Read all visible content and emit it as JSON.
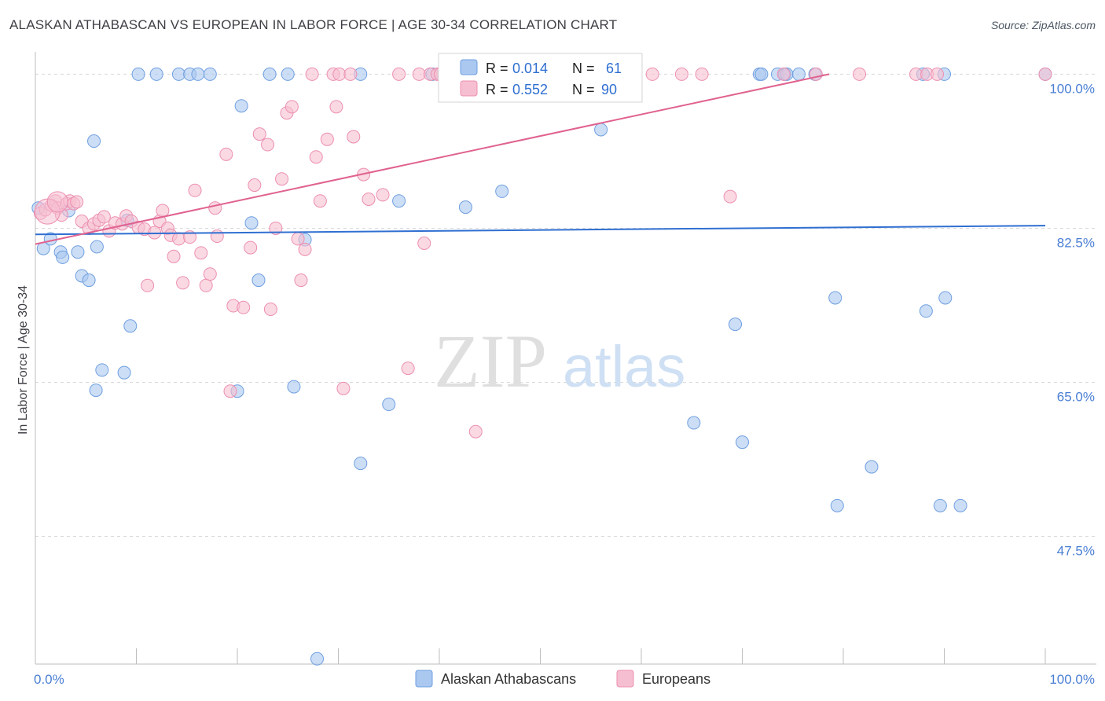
{
  "title": "ALASKAN ATHABASCAN VS EUROPEAN IN LABOR FORCE | AGE 30-34 CORRELATION CHART",
  "source": "Source: ZipAtlas.com",
  "watermark": {
    "zip": "ZIP",
    "atlas": "atlas"
  },
  "colors": {
    "blue_fill": "#aac8f0",
    "blue_stroke": "#6f9fe0",
    "blue_line": "#2f6fd1",
    "pink_fill": "#f6bfd1",
    "pink_stroke": "#ec8fb0",
    "pink_line": "#e0628f",
    "tick_label": "#4a7fd4",
    "grid": "#d9d9d9"
  },
  "legend": {
    "items": [
      {
        "r_label": "R =",
        "r_value": "0.014",
        "n_label": "N =",
        "n_value": "61"
      },
      {
        "r_label": "R =",
        "r_value": "0.552",
        "n_label": "N =",
        "n_value": "90"
      }
    ]
  },
  "chart_data": {
    "type": "scatter",
    "title": "ALASKAN ATHABASCAN VS EUROPEAN IN LABOR FORCE | AGE 30-34 CORRELATION CHART",
    "xlabel": "",
    "ylabel": "In Labor Force | Age 30-34",
    "xlim": [
      0,
      100
    ],
    "ylim": [
      33,
      102
    ],
    "x_tick_labels": [
      "0.0%",
      "100.0%"
    ],
    "y_ticks": [
      47.5,
      65.0,
      82.5,
      100.0
    ],
    "y_tick_labels": [
      "47.5%",
      "65.0%",
      "82.5%",
      "100.0%"
    ],
    "grid": true,
    "legend_position": "top-center",
    "series": [
      {
        "name": "Alaskan Athabascans",
        "r": 0.014,
        "n": 61,
        "trend": [
          [
            0,
            81.8
          ],
          [
            100,
            82.8
          ]
        ],
        "points": [
          [
            0.3,
            84.8
          ],
          [
            0.8,
            80.2
          ],
          [
            1.5,
            81.3
          ],
          [
            2.5,
            79.8
          ],
          [
            2.7,
            79.2
          ],
          [
            3.3,
            84.5
          ],
          [
            4.2,
            79.8
          ],
          [
            4.6,
            77.1
          ],
          [
            5.3,
            76.6
          ],
          [
            5.8,
            92.4
          ],
          [
            6.1,
            80.4
          ],
          [
            6.6,
            66.4
          ],
          [
            6.0,
            64.1
          ],
          [
            8.8,
            66.1
          ],
          [
            9.1,
            83.4
          ],
          [
            9.4,
            71.4
          ],
          [
            10.2,
            100.0
          ],
          [
            12.0,
            100.0
          ],
          [
            14.2,
            100.0
          ],
          [
            15.3,
            100.0
          ],
          [
            16.1,
            100.0
          ],
          [
            17.3,
            100.0
          ],
          [
            20.4,
            96.4
          ],
          [
            20.0,
            64.0
          ],
          [
            21.4,
            83.1
          ],
          [
            22.1,
            76.6
          ],
          [
            23.2,
            100.0
          ],
          [
            25.0,
            100.0
          ],
          [
            25.6,
            64.5
          ],
          [
            26.7,
            81.2
          ],
          [
            27.9,
            33.6
          ],
          [
            32.2,
            100.0
          ],
          [
            32.2,
            55.8
          ],
          [
            35.0,
            62.5
          ],
          [
            36.0,
            85.6
          ],
          [
            39.3,
            100.0
          ],
          [
            42.6,
            84.9
          ],
          [
            44.4,
            100.0
          ],
          [
            46.2,
            86.7
          ],
          [
            48.9,
            100.0
          ],
          [
            56.0,
            93.7
          ],
          [
            65.2,
            60.4
          ],
          [
            69.3,
            71.6
          ],
          [
            70.0,
            58.2
          ],
          [
            71.7,
            100.0
          ],
          [
            71.9,
            100.0
          ],
          [
            73.5,
            100.0
          ],
          [
            74.2,
            100.0
          ],
          [
            74.4,
            100.0
          ],
          [
            75.6,
            100.0
          ],
          [
            77.2,
            100.0
          ],
          [
            79.2,
            74.6
          ],
          [
            79.4,
            51.0
          ],
          [
            82.8,
            55.4
          ],
          [
            87.9,
            100.0
          ],
          [
            88.2,
            73.1
          ],
          [
            89.6,
            51.0
          ],
          [
            90.1,
            74.6
          ],
          [
            90.0,
            100.0
          ],
          [
            91.6,
            51.0
          ],
          [
            100.0,
            100.0
          ]
        ]
      },
      {
        "name": "Europeans",
        "r": 0.552,
        "n": 90,
        "trend": [
          [
            0,
            80.7
          ],
          [
            78.6,
            100.0
          ]
        ],
        "points": [
          [
            0.5,
            84.2
          ],
          [
            1.0,
            84.6
          ],
          [
            1.6,
            85.1
          ],
          [
            2.0,
            85.6
          ],
          [
            2.2,
            84.8
          ],
          [
            2.6,
            84.0
          ],
          [
            3.1,
            85.3
          ],
          [
            3.4,
            85.6
          ],
          [
            3.8,
            85.3
          ],
          [
            4.1,
            85.5
          ],
          [
            4.6,
            83.3
          ],
          [
            5.3,
            82.5
          ],
          [
            5.8,
            83.0
          ],
          [
            6.3,
            83.4
          ],
          [
            6.8,
            83.8
          ],
          [
            7.3,
            82.2
          ],
          [
            7.9,
            83.1
          ],
          [
            8.6,
            83.0
          ],
          [
            9.0,
            83.9
          ],
          [
            9.5,
            83.3
          ],
          [
            10.2,
            82.6
          ],
          [
            10.8,
            82.4
          ],
          [
            11.1,
            76.0
          ],
          [
            11.8,
            82.0
          ],
          [
            12.3,
            83.3
          ],
          [
            12.6,
            84.5
          ],
          [
            13.1,
            82.5
          ],
          [
            13.4,
            81.7
          ],
          [
            13.7,
            79.3
          ],
          [
            14.2,
            81.3
          ],
          [
            14.6,
            76.3
          ],
          [
            15.3,
            81.5
          ],
          [
            15.8,
            86.8
          ],
          [
            16.4,
            79.7
          ],
          [
            16.9,
            76.0
          ],
          [
            17.3,
            77.3
          ],
          [
            17.8,
            84.8
          ],
          [
            18.0,
            81.6
          ],
          [
            18.9,
            90.9
          ],
          [
            19.3,
            64.0
          ],
          [
            19.6,
            73.7
          ],
          [
            20.6,
            73.5
          ],
          [
            21.3,
            80.3
          ],
          [
            21.7,
            87.4
          ],
          [
            22.2,
            93.2
          ],
          [
            23.0,
            92.0
          ],
          [
            23.3,
            73.3
          ],
          [
            23.8,
            82.5
          ],
          [
            24.4,
            88.1
          ],
          [
            24.9,
            95.6
          ],
          [
            25.4,
            96.3
          ],
          [
            26.0,
            81.3
          ],
          [
            26.3,
            76.6
          ],
          [
            26.7,
            80.1
          ],
          [
            27.4,
            100.0
          ],
          [
            27.8,
            90.6
          ],
          [
            28.2,
            85.6
          ],
          [
            28.9,
            92.6
          ],
          [
            29.5,
            100.0
          ],
          [
            29.8,
            96.3
          ],
          [
            30.1,
            100.0
          ],
          [
            30.5,
            64.3
          ],
          [
            31.2,
            100.0
          ],
          [
            31.5,
            92.9
          ],
          [
            32.5,
            88.6
          ],
          [
            33.0,
            85.8
          ],
          [
            34.4,
            86.3
          ],
          [
            36.0,
            100.0
          ],
          [
            36.9,
            66.6
          ],
          [
            38.0,
            100.0
          ],
          [
            38.5,
            80.8
          ],
          [
            39.1,
            100.0
          ],
          [
            39.8,
            100.0
          ],
          [
            40.1,
            100.0
          ],
          [
            43.6,
            59.4
          ],
          [
            48.0,
            100.0
          ],
          [
            54.5,
            100.0
          ],
          [
            55.0,
            100.0
          ],
          [
            58.6,
            100.0
          ],
          [
            61.1,
            100.0
          ],
          [
            64.0,
            100.0
          ],
          [
            66.0,
            100.0
          ],
          [
            68.8,
            86.1
          ],
          [
            74.1,
            100.0
          ],
          [
            77.3,
            100.0
          ],
          [
            81.6,
            100.0
          ],
          [
            87.2,
            100.0
          ],
          [
            88.3,
            100.0
          ],
          [
            89.3,
            100.0
          ],
          [
            100.0,
            100.0
          ]
        ]
      }
    ]
  }
}
